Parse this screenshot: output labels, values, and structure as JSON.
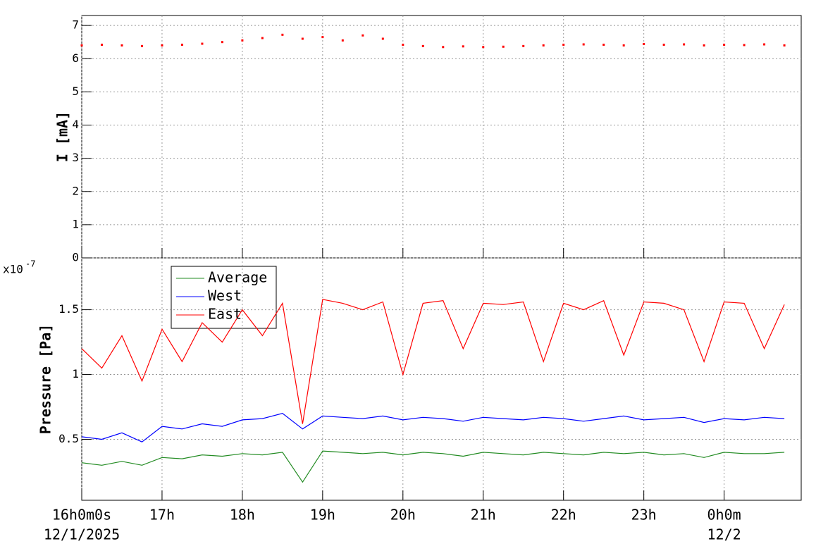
{
  "chart_data": [
    {
      "type": "scatter",
      "y_label": "I [mA]",
      "x": [
        16,
        16.25,
        16.5,
        16.75,
        17,
        17.25,
        17.5,
        17.75,
        18,
        18.25,
        18.5,
        18.75,
        19,
        19.25,
        19.5,
        19.75,
        20,
        20.25,
        20.5,
        20.75,
        21,
        21.25,
        21.5,
        21.75,
        22,
        22.25,
        22.5,
        22.75,
        23,
        23.25,
        23.5,
        23.75,
        24,
        24.25,
        24.5,
        24.75
      ],
      "series": [
        {
          "name": "I",
          "color": "#ff0000",
          "values": [
            6.4,
            6.42,
            6.4,
            6.38,
            6.4,
            6.42,
            6.45,
            6.5,
            6.55,
            6.62,
            6.72,
            6.6,
            6.65,
            6.55,
            6.7,
            6.6,
            6.42,
            6.38,
            6.35,
            6.37,
            6.35,
            6.36,
            6.38,
            6.4,
            6.42,
            6.43,
            6.42,
            6.4,
            6.44,
            6.42,
            6.43,
            6.4,
            6.42,
            6.41,
            6.43,
            6.4
          ]
        }
      ],
      "xlim": [
        16,
        24.96
      ],
      "xticks": [
        16,
        17,
        18,
        19,
        20,
        21,
        22,
        23,
        24
      ],
      "ylim": [
        0,
        7.3
      ],
      "yticks": [
        0,
        1,
        2,
        3,
        4,
        5,
        6,
        7
      ],
      "grid": true
    },
    {
      "type": "line",
      "y_label": "Pressure [Pa]",
      "y_scale": "x10",
      "y_scale_power": "-7",
      "x": [
        16,
        16.25,
        16.5,
        16.75,
        17,
        17.25,
        17.5,
        17.75,
        18,
        18.25,
        18.5,
        18.75,
        19,
        19.25,
        19.5,
        19.75,
        20,
        20.25,
        20.5,
        20.75,
        21,
        21.25,
        21.5,
        21.75,
        22,
        22.25,
        22.5,
        22.75,
        23,
        23.25,
        23.5,
        23.75,
        24,
        24.25,
        24.5,
        24.75
      ],
      "series": [
        {
          "name": "Average",
          "color": "#228b22",
          "values": [
            0.32,
            0.3,
            0.33,
            0.3,
            0.36,
            0.35,
            0.38,
            0.37,
            0.39,
            0.38,
            0.4,
            0.17,
            0.41,
            0.4,
            0.39,
            0.4,
            0.38,
            0.4,
            0.39,
            0.37,
            0.4,
            0.39,
            0.38,
            0.4,
            0.39,
            0.38,
            0.4,
            0.39,
            0.4,
            0.38,
            0.39,
            0.36,
            0.4,
            0.39,
            0.39,
            0.4
          ]
        },
        {
          "name": "West",
          "color": "#0000ff",
          "values": [
            0.52,
            0.5,
            0.55,
            0.48,
            0.6,
            0.58,
            0.62,
            0.6,
            0.65,
            0.66,
            0.7,
            0.58,
            0.68,
            0.67,
            0.66,
            0.68,
            0.65,
            0.67,
            0.66,
            0.64,
            0.67,
            0.66,
            0.65,
            0.67,
            0.66,
            0.64,
            0.66,
            0.68,
            0.65,
            0.66,
            0.67,
            0.63,
            0.66,
            0.65,
            0.67,
            0.66
          ]
        },
        {
          "name": "East",
          "color": "#ff0000",
          "values": [
            1.2,
            1.05,
            1.3,
            0.95,
            1.35,
            1.1,
            1.4,
            1.25,
            1.5,
            1.3,
            1.55,
            0.62,
            1.58,
            1.55,
            1.5,
            1.56,
            1.0,
            1.55,
            1.57,
            1.2,
            1.55,
            1.54,
            1.56,
            1.1,
            1.55,
            1.5,
            1.57,
            1.15,
            1.56,
            1.55,
            1.5,
            1.1,
            1.56,
            1.55,
            1.2,
            1.54
          ]
        }
      ],
      "xlim": [
        16,
        24.96
      ],
      "xticks": [
        {
          "value": 16,
          "label": "16h0m0s"
        },
        {
          "value": 17,
          "label": "17h"
        },
        {
          "value": 18,
          "label": "18h"
        },
        {
          "value": 19,
          "label": "19h"
        },
        {
          "value": 20,
          "label": "20h"
        },
        {
          "value": 21,
          "label": "21h"
        },
        {
          "value": 22,
          "label": "22h"
        },
        {
          "value": 23,
          "label": "23h"
        },
        {
          "value": 24,
          "label": "0h0m"
        }
      ],
      "x_date_labels": [
        {
          "value": 16,
          "label": "12/1/2025"
        },
        {
          "value": 24,
          "label": "12/2"
        }
      ],
      "ylim": [
        0.03,
        1.9
      ],
      "yticks": [
        0.5,
        1,
        1.5
      ],
      "grid": true
    }
  ]
}
